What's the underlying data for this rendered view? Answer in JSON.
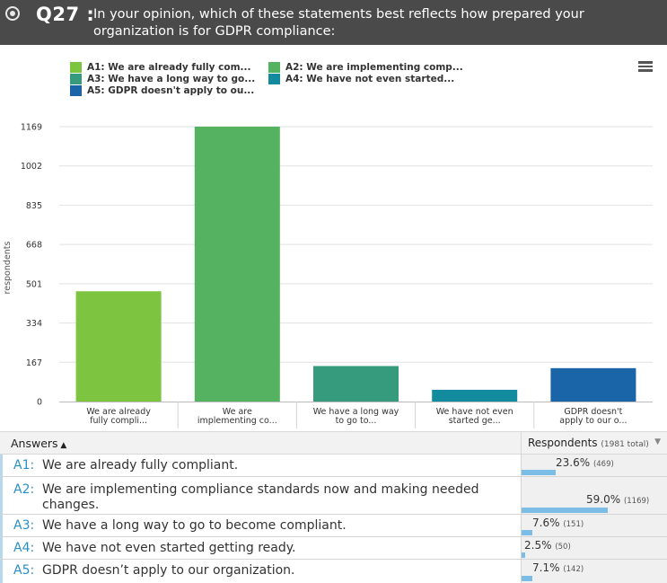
{
  "header": {
    "question_number": "Q27 :",
    "question_text": "In your opinion, which of these statements best reflects how prepared your organization is for GDPR compliance:"
  },
  "legend": [
    {
      "label": "A1: We are already fully com...",
      "color": "#7dc540"
    },
    {
      "label": "A2: We are implementing comp...",
      "color": "#55b260"
    },
    {
      "label": "A3: We have a long way to go...",
      "color": "#369a7c"
    },
    {
      "label": "A4: We have not even started...",
      "color": "#128b9e"
    },
    {
      "label": "A5: GDPR doesn't apply to ou...",
      "color": "#1a64a8"
    }
  ],
  "chart_data": {
    "type": "bar",
    "ylabel": "respondents",
    "ylim": [
      0,
      1169
    ],
    "yticks": [
      0,
      167,
      334,
      501,
      668,
      835,
      1002,
      1169
    ],
    "categories": [
      [
        "We are already",
        "fully compli..."
      ],
      [
        "We are",
        "implementing co..."
      ],
      [
        "We have a long way",
        "to go to..."
      ],
      [
        "We have not even",
        "started ge..."
      ],
      [
        "GDPR doesn't",
        "apply to our o..."
      ]
    ],
    "values": [
      469,
      1169,
      151,
      50,
      142
    ],
    "colors": [
      "#7dc540",
      "#55b260",
      "#369a7c",
      "#128b9e",
      "#1a64a8"
    ]
  },
  "table": {
    "answers_header": "Answers",
    "respondents_header": "Respondents",
    "respondents_total": "(1981 total)",
    "rows": [
      {
        "code": "A1:",
        "text": "We are already fully compliant.",
        "pct": "23.6%",
        "count": "(469)",
        "fraction": 0.236
      },
      {
        "code": "A2:",
        "text": "We are implementing compliance standards now and making needed changes.",
        "pct": "59.0%",
        "count": "(1169)",
        "fraction": 0.59
      },
      {
        "code": "A3:",
        "text": "We have a long way to go to become compliant.",
        "pct": "7.6%",
        "count": "(151)",
        "fraction": 0.076
      },
      {
        "code": "A4:",
        "text": "We have not even started getting ready.",
        "pct": "2.5%",
        "count": "(50)",
        "fraction": 0.025
      },
      {
        "code": "A5:",
        "text": "GDPR doesn’t apply to our organization.",
        "pct": "7.1%",
        "count": "(142)",
        "fraction": 0.071
      }
    ]
  }
}
